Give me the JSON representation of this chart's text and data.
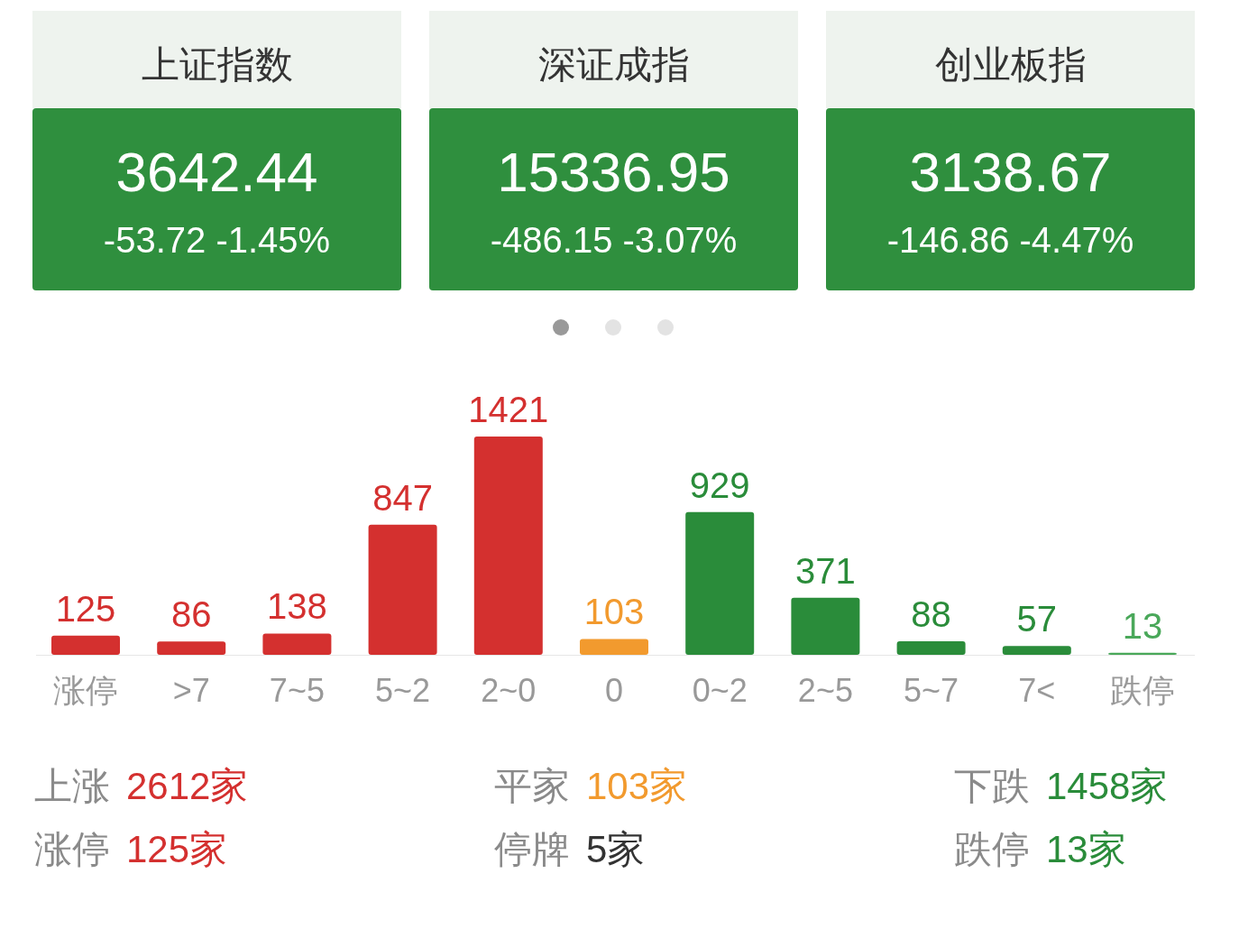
{
  "chart_data": [
    {
      "type": "other",
      "title": "上证指数",
      "annotations": [
        "3642.44",
        "-53.72",
        "-1.45%"
      ]
    },
    {
      "type": "other",
      "title": "深证成指",
      "annotations": [
        "15336.95",
        "-486.15",
        "-3.07%"
      ]
    },
    {
      "type": "other",
      "title": "创业板指",
      "annotations": [
        "3138.67",
        "-146.86",
        "-4.47%"
      ]
    },
    {
      "type": "bar",
      "categories": [
        "涨停",
        ">7",
        "7~5",
        "5~2",
        "2~0",
        "0",
        "0~2",
        "2~5",
        "5~7",
        "7<",
        "跌停"
      ],
      "values": [
        125,
        86,
        138,
        847,
        1421,
        103,
        929,
        371,
        88,
        57,
        13
      ],
      "colors": [
        "#d4302f",
        "#d4302f",
        "#d4302f",
        "#d4302f",
        "#d4302f",
        "#f29a2e",
        "#2a8c3a",
        "#2a8c3a",
        "#2a8c3a",
        "#2a8c3a",
        "#4aa85a"
      ],
      "data_labels": true
    },
    {
      "type": "other",
      "annotations": [
        "上涨",
        "2612家",
        "平家",
        "103家",
        "下跌",
        "1458家",
        "涨停",
        "125家",
        "停牌",
        "5家",
        "跌停",
        "13家"
      ]
    }
  ]
}
